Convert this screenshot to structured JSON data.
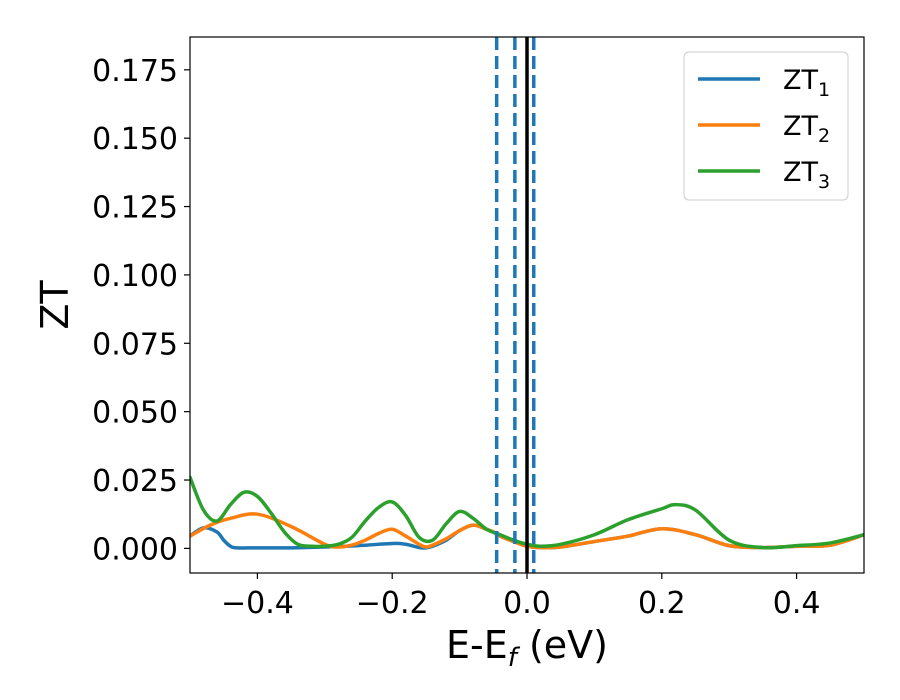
{
  "chart_data": {
    "type": "line",
    "title": "",
    "xlabel": "E-E",
    "xlabel_sub": "f",
    "xlabel_unit": " (eV)",
    "ylabel": "ZT",
    "xlim": [
      -0.5,
      0.5
    ],
    "ylim": [
      -0.009,
      0.187
    ],
    "xticks": [
      -0.4,
      -0.2,
      0.0,
      0.2,
      0.4
    ],
    "xtick_labels": [
      "−0.4",
      "−0.2",
      "0.0",
      "0.2",
      "0.4"
    ],
    "yticks": [
      0.0,
      0.025,
      0.05,
      0.075,
      0.1,
      0.125,
      0.15,
      0.175
    ],
    "ytick_labels": [
      "0.000",
      "0.025",
      "0.050",
      "0.075",
      "0.100",
      "0.125",
      "0.150",
      "0.175"
    ],
    "grid": false,
    "legend_position": "top-right",
    "series": [
      {
        "name": "ZT",
        "name_sub": "1",
        "color": "#1f77b4",
        "x": [
          -0.5,
          -0.48,
          -0.46,
          -0.45,
          -0.44,
          -0.43,
          -0.4,
          -0.35,
          -0.3,
          -0.25,
          -0.2,
          -0.18,
          -0.16,
          -0.15,
          -0.14,
          -0.12,
          -0.1,
          -0.08,
          -0.06,
          -0.05,
          -0.04,
          -0.02,
          0.0,
          0.02,
          0.05,
          0.1,
          0.15,
          0.2,
          0.25,
          0.3,
          0.35,
          0.4,
          0.45,
          0.5
        ],
        "y": [
          0.0045,
          0.0075,
          0.006,
          0.003,
          0.0008,
          0.0002,
          0.0002,
          0.0002,
          0.0005,
          0.001,
          0.0018,
          0.0015,
          0.0003,
          0.0002,
          0.0008,
          0.003,
          0.0065,
          0.0085,
          0.007,
          0.006,
          0.0045,
          0.0025,
          0.0008,
          0.0003,
          0.0005,
          0.0025,
          0.0045,
          0.0072,
          0.005,
          0.001,
          0.0003,
          0.0008,
          0.0012,
          0.005
        ]
      },
      {
        "name": "ZT",
        "name_sub": "2",
        "color": "#ff7f0e",
        "x": [
          -0.5,
          -0.47,
          -0.44,
          -0.4,
          -0.35,
          -0.3,
          -0.28,
          -0.26,
          -0.24,
          -0.22,
          -0.2,
          -0.18,
          -0.16,
          -0.15,
          -0.14,
          -0.12,
          -0.1,
          -0.08,
          -0.06,
          -0.05,
          -0.04,
          -0.02,
          0.0,
          0.02,
          0.05,
          0.1,
          0.15,
          0.2,
          0.25,
          0.3,
          0.35,
          0.4,
          0.45,
          0.5
        ],
        "y": [
          0.0045,
          0.0085,
          0.011,
          0.0125,
          0.008,
          0.0015,
          0.0005,
          0.0012,
          0.003,
          0.0055,
          0.007,
          0.0045,
          0.0015,
          0.0005,
          0.0012,
          0.0035,
          0.0065,
          0.0085,
          0.007,
          0.006,
          0.0045,
          0.0025,
          0.0008,
          0.0003,
          0.0005,
          0.0025,
          0.0045,
          0.0072,
          0.005,
          0.001,
          0.0003,
          0.0008,
          0.0012,
          0.005
        ]
      },
      {
        "name": "ZT",
        "name_sub": "3",
        "color": "#2ca02c",
        "x": [
          -0.5,
          -0.48,
          -0.46,
          -0.44,
          -0.42,
          -0.4,
          -0.38,
          -0.36,
          -0.34,
          -0.32,
          -0.3,
          -0.28,
          -0.26,
          -0.24,
          -0.22,
          -0.2,
          -0.18,
          -0.16,
          -0.14,
          -0.12,
          -0.1,
          -0.08,
          -0.06,
          -0.04,
          -0.02,
          0.0,
          0.02,
          0.05,
          0.1,
          0.15,
          0.2,
          0.22,
          0.25,
          0.3,
          0.35,
          0.4,
          0.45,
          0.5
        ],
        "y": [
          0.026,
          0.014,
          0.01,
          0.016,
          0.0205,
          0.019,
          0.013,
          0.006,
          0.0015,
          0.0008,
          0.0008,
          0.0015,
          0.004,
          0.01,
          0.015,
          0.017,
          0.012,
          0.004,
          0.003,
          0.009,
          0.0135,
          0.011,
          0.007,
          0.005,
          0.003,
          0.0015,
          0.0008,
          0.0015,
          0.005,
          0.0105,
          0.0145,
          0.016,
          0.014,
          0.003,
          0.0003,
          0.001,
          0.002,
          0.005
        ]
      }
    ],
    "vertical_lines": [
      {
        "x": -0.045,
        "style": "dashed",
        "color": "#1f77b4"
      },
      {
        "x": -0.018,
        "style": "dashed",
        "color": "#1f77b4"
      },
      {
        "x": 0.01,
        "style": "dashed",
        "color": "#1f77b4"
      },
      {
        "x": 0.0,
        "style": "solid",
        "color": "#000000"
      }
    ]
  }
}
